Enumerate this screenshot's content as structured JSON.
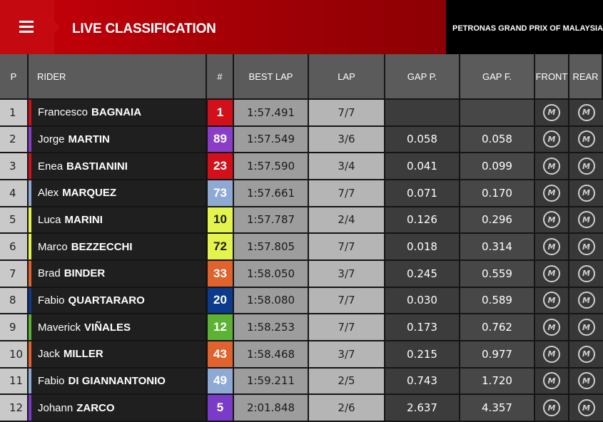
{
  "header": {
    "title": "LIVE CLASSIFICATION",
    "event": "PETRONAS GRAND PRIX OF MALAYSIA"
  },
  "table": {
    "columns": [
      "P",
      "RIDER",
      "#",
      "BEST LAP",
      "LAP",
      "GAP P.",
      "GAP F.",
      "FRONT",
      "REAR"
    ],
    "rows": [
      {
        "position": 1,
        "first_name": "Francesco",
        "last_name": "BAGNAIA",
        "number": 1,
        "color": "#d2101a",
        "best_lap": "1:57.491",
        "lap": "7/7",
        "gap_p": null,
        "gap_f": null,
        "front": "M",
        "rear": "M"
      },
      {
        "position": 2,
        "first_name": "Jorge",
        "last_name": "MARTIN",
        "number": 89,
        "color": "#8a3ec8",
        "best_lap": "1:57.549",
        "lap": "3/6",
        "gap_p": "0.058",
        "gap_f": "0.058",
        "front": "M",
        "rear": "M"
      },
      {
        "position": 3,
        "first_name": "Enea",
        "last_name": "BASTIANINI",
        "number": 23,
        "color": "#d2101a",
        "best_lap": "1:57.590",
        "lap": "3/4",
        "gap_p": "0.041",
        "gap_f": "0.099",
        "front": "M",
        "rear": "M"
      },
      {
        "position": 4,
        "first_name": "Alex",
        "last_name": "MARQUEZ",
        "number": 73,
        "color": "#8eaad4",
        "best_lap": "1:57.661",
        "lap": "7/7",
        "gap_p": "0.071",
        "gap_f": "0.170",
        "front": "M",
        "rear": "M"
      },
      {
        "position": 5,
        "first_name": "Luca",
        "last_name": "MARINI",
        "number": 10,
        "color": "#e4f44c",
        "best_lap": "1:57.787",
        "lap": "2/4",
        "gap_p": "0.126",
        "gap_f": "0.296",
        "front": "M",
        "rear": "M"
      },
      {
        "position": 6,
        "first_name": "Marco",
        "last_name": "BEZZECCHI",
        "number": 72,
        "color": "#e4f44c",
        "best_lap": "1:57.805",
        "lap": "7/7",
        "gap_p": "0.018",
        "gap_f": "0.314",
        "front": "M",
        "rear": "M"
      },
      {
        "position": 7,
        "first_name": "Brad",
        "last_name": "BINDER",
        "number": 33,
        "color": "#e0622c",
        "best_lap": "1:58.050",
        "lap": "3/7",
        "gap_p": "0.245",
        "gap_f": "0.559",
        "front": "M",
        "rear": "M"
      },
      {
        "position": 8,
        "first_name": "Fabio",
        "last_name": "QUARTARARO",
        "number": 20,
        "color": "#0c3a8c",
        "best_lap": "1:58.080",
        "lap": "7/7",
        "gap_p": "0.030",
        "gap_f": "0.589",
        "front": "M",
        "rear": "M"
      },
      {
        "position": 9,
        "first_name": "Maverick",
        "last_name": "VIÑALES",
        "number": 12,
        "color": "#5cb232",
        "best_lap": "1:58.253",
        "lap": "7/7",
        "gap_p": "0.173",
        "gap_f": "0.762",
        "front": "M",
        "rear": "M"
      },
      {
        "position": 10,
        "first_name": "Jack",
        "last_name": "MILLER",
        "number": 43,
        "color": "#e0622c",
        "best_lap": "1:58.468",
        "lap": "3/7",
        "gap_p": "0.215",
        "gap_f": "0.977",
        "front": "M",
        "rear": "M"
      },
      {
        "position": 11,
        "first_name": "Fabio",
        "last_name": "DI GIANNANTONIO",
        "number": 49,
        "color": "#8eaad4",
        "best_lap": "1:59.211",
        "lap": "2/5",
        "gap_p": "0.743",
        "gap_f": "1.720",
        "front": "M",
        "rear": "M"
      },
      {
        "position": 12,
        "first_name": "Johann",
        "last_name": "ZARCO",
        "number": 5,
        "color": "#7a3cc8",
        "best_lap": "2:01.848",
        "lap": "2/6",
        "gap_p": "2.637",
        "gap_f": "4.357",
        "front": "M",
        "rear": "M"
      }
    ]
  }
}
